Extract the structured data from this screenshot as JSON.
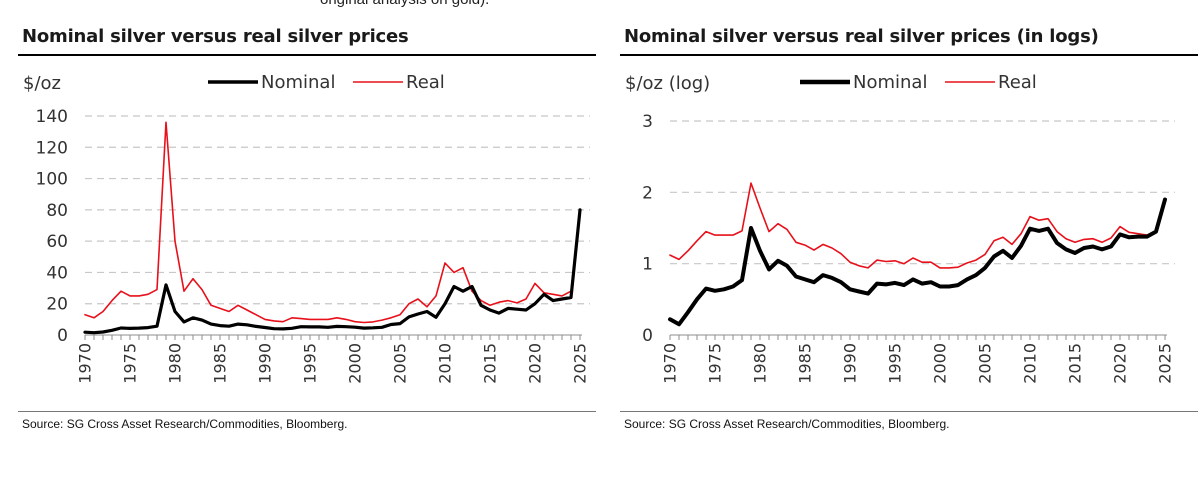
{
  "top_note": "original analysis on gold).",
  "panels": [
    {
      "title": "Nominal silver versus real silver prices",
      "source": "Source: SG Cross Asset Research/Commodities, Bloomberg."
    },
    {
      "title": "Nominal silver versus real silver prices (in logs)",
      "source": "Source: SG Cross Asset Research/Commodities, Bloomberg."
    }
  ],
  "chart_data": [
    {
      "type": "line",
      "title": "Nominal silver versus real silver prices",
      "ylabel": "$/oz",
      "xlabel": "",
      "ylim": [
        0,
        140
      ],
      "yticks": [
        0,
        20,
        40,
        60,
        80,
        100,
        120,
        140
      ],
      "xlim": [
        1970,
        2025
      ],
      "xticks": [
        1970,
        1975,
        1980,
        1985,
        1990,
        1995,
        2000,
        2005,
        2010,
        2015,
        2020,
        2025
      ],
      "grid": "horizontal dashed",
      "legend_position": "top-center",
      "x": [
        1970,
        1971,
        1972,
        1973,
        1974,
        1975,
        1976,
        1977,
        1978,
        1979,
        1980,
        1981,
        1982,
        1983,
        1984,
        1985,
        1986,
        1987,
        1988,
        1989,
        1990,
        1991,
        1992,
        1993,
        1994,
        1995,
        1996,
        1997,
        1998,
        1999,
        2000,
        2001,
        2002,
        2003,
        2004,
        2005,
        2006,
        2007,
        2008,
        2009,
        2010,
        2011,
        2012,
        2013,
        2014,
        2015,
        2016,
        2017,
        2018,
        2019,
        2020,
        2021,
        2022,
        2023,
        2024,
        2025
      ],
      "series": [
        {
          "name": "Nominal",
          "color": "#000000",
          "values": [
            1.8,
            1.5,
            1.9,
            3.0,
            4.5,
            4.2,
            4.4,
            4.7,
            5.6,
            32,
            15,
            8.4,
            11,
            9.5,
            7,
            6,
            5.6,
            7,
            6.5,
            5.5,
            4.8,
            4.0,
            3.9,
            4.3,
            5.3,
            5.2,
            5.2,
            4.9,
            5.5,
            5.3,
            5.0,
            4.4,
            4.6,
            4.9,
            6.7,
            7.3,
            11.6,
            13.4,
            15,
            11.3,
            20,
            31,
            28,
            31,
            19,
            16,
            14,
            17,
            16.5,
            16,
            20,
            26,
            22,
            23,
            24,
            80
          ]
        },
        {
          "name": "Real",
          "color": "#e8101a",
          "values": [
            13,
            11,
            15,
            22,
            28,
            25,
            25,
            26,
            29,
            136,
            60,
            28,
            36,
            29,
            19,
            17,
            15,
            19,
            16,
            13,
            10,
            9,
            8.5,
            11,
            10.5,
            10,
            10,
            10,
            11,
            10,
            8.5,
            8,
            8.4,
            9.5,
            11,
            13,
            20,
            23,
            18,
            25,
            46,
            40,
            43,
            28,
            22,
            19,
            21,
            22,
            20.5,
            23,
            33,
            27,
            26,
            25,
            28,
            80
          ]
        }
      ]
    },
    {
      "type": "line",
      "title": "Nominal silver versus real silver prices (in logs)",
      "ylabel": "$/oz (log)",
      "xlabel": "",
      "ylim": [
        0,
        3
      ],
      "yticks": [
        0,
        1,
        2,
        3
      ],
      "xlim": [
        1970,
        2025
      ],
      "xticks": [
        1970,
        1975,
        1980,
        1985,
        1990,
        1995,
        2000,
        2005,
        2010,
        2015,
        2020,
        2025
      ],
      "grid": "horizontal dashed",
      "legend_position": "top-center",
      "x": [
        1970,
        1971,
        1972,
        1973,
        1974,
        1975,
        1976,
        1977,
        1978,
        1979,
        1980,
        1981,
        1982,
        1983,
        1984,
        1985,
        1986,
        1987,
        1988,
        1989,
        1990,
        1991,
        1992,
        1993,
        1994,
        1995,
        1996,
        1997,
        1998,
        1999,
        2000,
        2001,
        2002,
        2003,
        2004,
        2005,
        2006,
        2007,
        2008,
        2009,
        2010,
        2011,
        2012,
        2013,
        2014,
        2015,
        2016,
        2017,
        2018,
        2019,
        2020,
        2021,
        2022,
        2023,
        2024,
        2025
      ],
      "series": [
        {
          "name": "Nominal",
          "color": "#000000",
          "values": [
            0.22,
            0.15,
            0.32,
            0.5,
            0.65,
            0.62,
            0.64,
            0.68,
            0.77,
            1.5,
            1.18,
            0.92,
            1.04,
            0.97,
            0.82,
            0.78,
            0.74,
            0.84,
            0.8,
            0.74,
            0.64,
            0.61,
            0.58,
            0.72,
            0.71,
            0.73,
            0.7,
            0.78,
            0.72,
            0.74,
            0.68,
            0.68,
            0.7,
            0.78,
            0.84,
            0.94,
            1.1,
            1.18,
            1.08,
            1.25,
            1.49,
            1.46,
            1.49,
            1.29,
            1.2,
            1.15,
            1.22,
            1.24,
            1.2,
            1.24,
            1.41,
            1.37,
            1.38,
            1.38,
            1.45,
            1.9
          ]
        },
        {
          "name": "Real",
          "color": "#e8101a",
          "values": [
            1.12,
            1.06,
            1.18,
            1.32,
            1.45,
            1.4,
            1.4,
            1.4,
            1.46,
            2.13,
            1.78,
            1.45,
            1.56,
            1.48,
            1.3,
            1.26,
            1.19,
            1.27,
            1.22,
            1.14,
            1.02,
            0.97,
            0.94,
            1.05,
            1.03,
            1.04,
            1.0,
            1.08,
            1.02,
            1.02,
            0.94,
            0.94,
            0.95,
            1.01,
            1.05,
            1.13,
            1.32,
            1.37,
            1.27,
            1.42,
            1.66,
            1.61,
            1.63,
            1.45,
            1.35,
            1.3,
            1.34,
            1.35,
            1.3,
            1.36,
            1.52,
            1.44,
            1.42,
            1.4,
            1.46,
            1.9
          ]
        }
      ]
    }
  ]
}
